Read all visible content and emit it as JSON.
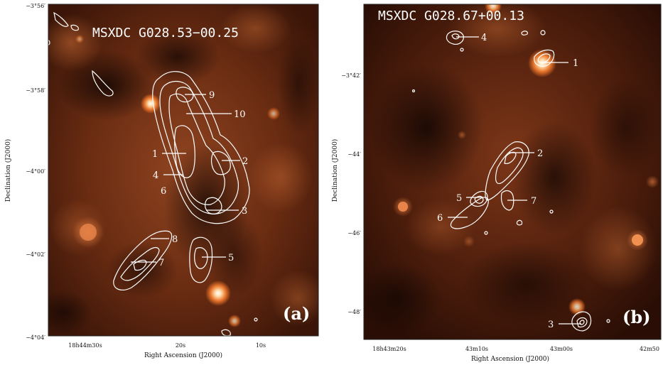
{
  "panels": [
    {
      "id": "a",
      "title": "MSXDC  G028.53−00.25",
      "panel_label": "(a)",
      "y_tick_labels": [
        "−3°56′",
        "−3°58′",
        "−4°00′",
        "−4°02′",
        "−4°04′"
      ],
      "x_tick_labels": [
        "18h44m30s",
        "20s",
        "10s"
      ],
      "y_axis_label": "Declination (J2000)",
      "x_axis_label": "Right Ascension (J2000)",
      "source_labels": [
        "1",
        "2",
        "3",
        "4",
        "5",
        "6",
        "7",
        "8",
        "9",
        "10"
      ]
    },
    {
      "id": "b",
      "title": "MSXDC  G028.67+00.13",
      "panel_label": "(b)",
      "y_tick_labels": [
        "−3°42′",
        "−44′",
        "−46′",
        "−48′"
      ],
      "x_tick_labels": [
        "18h43m20s",
        "43m10s",
        "43m00s",
        "42m50"
      ],
      "y_axis_label": "Declination (J2000)",
      "x_axis_label": "Right Ascension (J2000)",
      "source_labels": [
        "1",
        "2",
        "3",
        "4",
        "5",
        "6",
        "7"
      ]
    }
  ],
  "colors": {
    "background_dark": "#1a0804",
    "background_mid": "#7a3418",
    "background_light": "#b4602e",
    "star_core": "#ffffff",
    "star_halo": "#f07a2a",
    "contour": "#ffffff"
  }
}
